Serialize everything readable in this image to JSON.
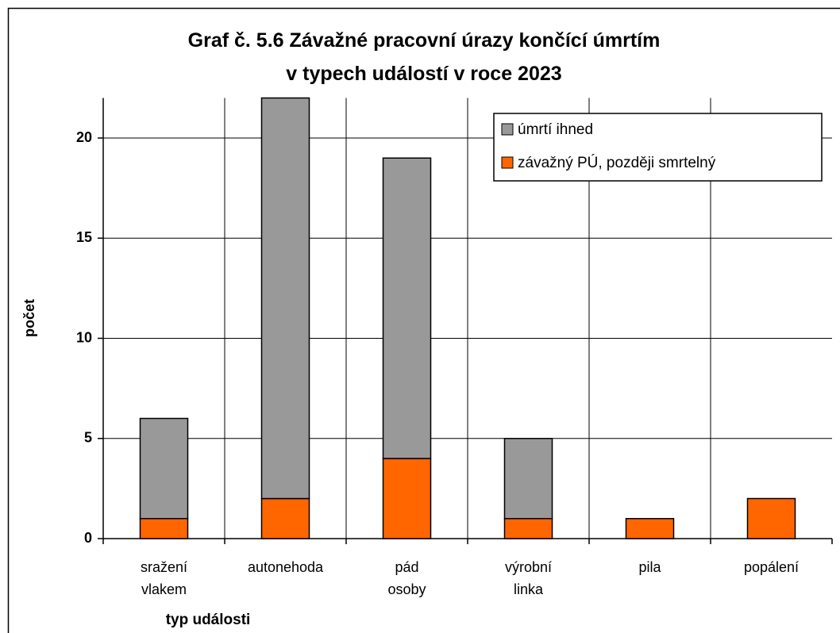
{
  "chart_data": {
    "type": "stacked_bar",
    "title": "Graf č. 5.6  Závažné pracovní úrazy končící úmrtím\nv typech událostí v roce 2023",
    "x_label": "typ události",
    "y_label": "počet",
    "categories": [
      "sražení\nvlakem",
      "autonehoda",
      "pád\nosoby",
      "výrobní\nlinka",
      "pila",
      "popálení"
    ],
    "series": [
      {
        "name": "úmrtí ihned",
        "color": "#999999",
        "values": [
          5,
          20,
          15,
          4,
          0,
          0
        ]
      },
      {
        "name": "závažný PÚ, později smrtelný",
        "color": "#ff6600",
        "values": [
          1,
          2,
          4,
          1,
          1,
          2
        ]
      }
    ],
    "ylim": [
      0,
      22
    ],
    "yticks": [
      0,
      5,
      10,
      15,
      20
    ],
    "grid": true,
    "legend": "upper right"
  }
}
